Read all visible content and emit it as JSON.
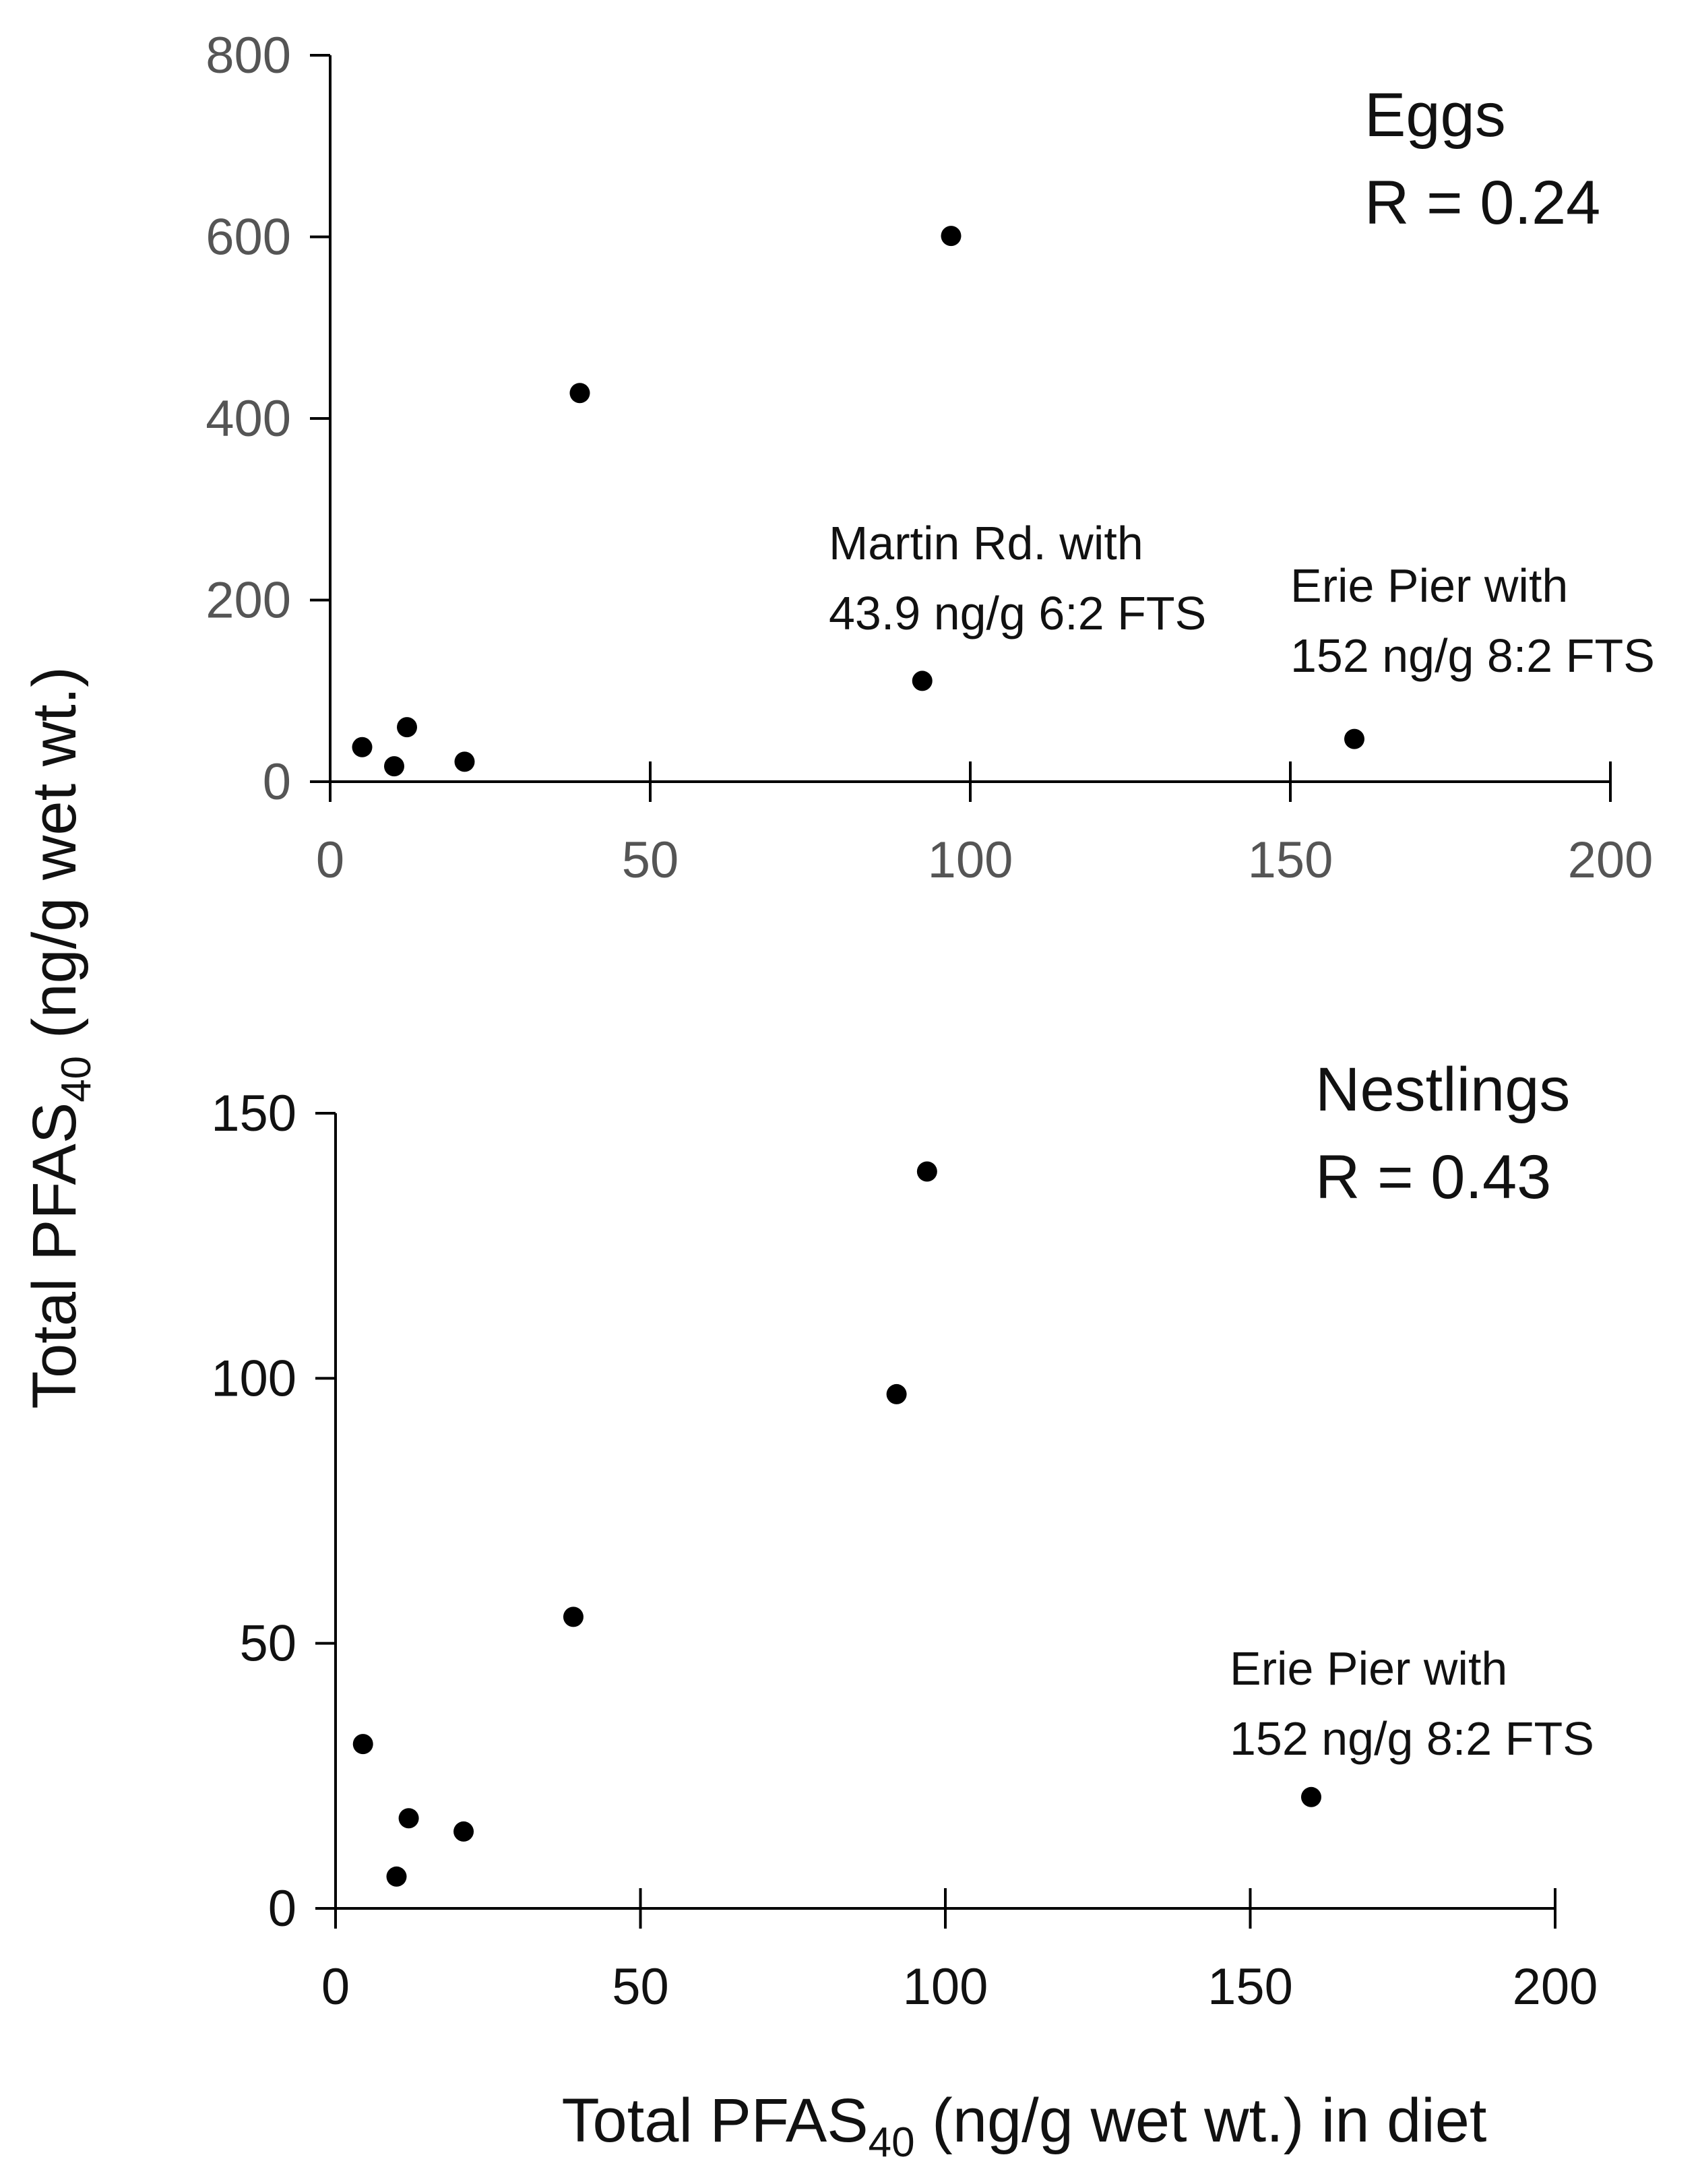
{
  "chart_data": [
    {
      "type": "scatter",
      "panel": "eggs",
      "title": "Eggs",
      "stat": "R = 0.24",
      "xlim": [
        0,
        200
      ],
      "ylim": [
        0,
        800
      ],
      "xticks": [
        0,
        50,
        100,
        150,
        200
      ],
      "yticks": [
        0,
        200,
        400,
        600,
        800
      ],
      "points": [
        {
          "x": 5,
          "y": 38
        },
        {
          "x": 10,
          "y": 17
        },
        {
          "x": 12,
          "y": 60
        },
        {
          "x": 21,
          "y": 22
        },
        {
          "x": 39,
          "y": 428
        },
        {
          "x": 92.5,
          "y": 111
        },
        {
          "x": 97,
          "y": 601
        },
        {
          "x": 160,
          "y": 47
        }
      ],
      "annotations": [
        {
          "lines": [
            "Martin Rd. with",
            "43.9 ng/g 6:2 FTS"
          ],
          "point": 5
        },
        {
          "lines": [
            "Erie Pier with",
            "152 ng/g 8:2 FTS"
          ],
          "point": 7
        }
      ]
    },
    {
      "type": "scatter",
      "panel": "nestlings",
      "title": "Nestlings",
      "stat": "R = 0.43",
      "xlim": [
        0,
        200
      ],
      "ylim": [
        0,
        150
      ],
      "xticks": [
        0,
        50,
        100,
        150,
        200
      ],
      "yticks": [
        0,
        50,
        100,
        150
      ],
      "points": [
        {
          "x": 4.5,
          "y": 31
        },
        {
          "x": 10,
          "y": 6
        },
        {
          "x": 12,
          "y": 17
        },
        {
          "x": 21,
          "y": 14.5
        },
        {
          "x": 39,
          "y": 55
        },
        {
          "x": 92,
          "y": 97
        },
        {
          "x": 97,
          "y": 139
        },
        {
          "x": 160,
          "y": 21
        }
      ],
      "annotations": [
        {
          "lines": [
            "Erie Pier with",
            "152 ng/g 8:2 FTS"
          ],
          "point": 7
        }
      ]
    }
  ],
  "axis_titles": {
    "y": {
      "main": "Total PFAS",
      "sub": "40",
      "rest": " (ng/g wet wt.)"
    },
    "x": {
      "main": "Total PFAS",
      "sub": "40",
      "rest": " (ng/g wet wt.) in diet"
    }
  }
}
